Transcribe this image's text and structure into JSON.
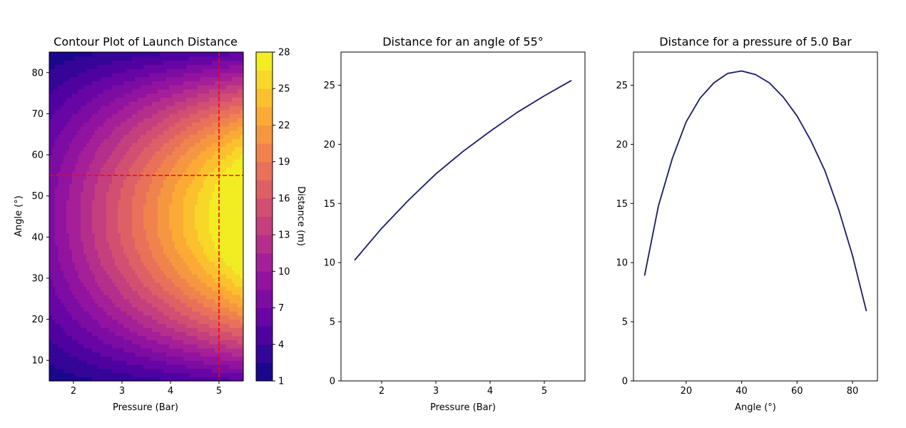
{
  "colors": {
    "line": "#191970",
    "crosshair": "#ff0000",
    "colormap": [
      "#0d0887",
      "#5c01a6",
      "#9c179e",
      "#cc4778",
      "#ed7953",
      "#fdb42f",
      "#f0f921"
    ]
  },
  "chart_data": [
    {
      "type": "heatmap",
      "title": "Contour Plot of Launch Distance",
      "xlabel": "Pressure (Bar)",
      "ylabel": "Angle (°)",
      "xlim": [
        1.5,
        5.5
      ],
      "ylim": [
        5,
        85
      ],
      "xticks": [
        2,
        3,
        4,
        5
      ],
      "yticks": [
        10,
        20,
        30,
        40,
        50,
        60,
        70,
        80
      ],
      "crosshair": {
        "x": 5,
        "y": 55
      },
      "colorbar": {
        "label": "Distance (m)",
        "range": [
          1,
          28
        ],
        "ticks": [
          1,
          4,
          7,
          10,
          13,
          16,
          19,
          22,
          25,
          28
        ],
        "levels": [
          1,
          2.5,
          4,
          5.5,
          7,
          8.5,
          10,
          11.5,
          13,
          14.5,
          16,
          17.5,
          19,
          20.5,
          22,
          23.5,
          25,
          26.5,
          28
        ]
      },
      "grid": false
    },
    {
      "type": "line",
      "title": "Distance for an angle of 55°",
      "xlabel": "Pressure (Bar)",
      "ylabel": "",
      "xlim": [
        1.25,
        5.75
      ],
      "ylim": [
        0,
        27.8
      ],
      "xticks": [
        2,
        3,
        4,
        5
      ],
      "yticks": [
        0,
        5,
        10,
        15,
        20,
        25
      ],
      "x": [
        1.5,
        2.0,
        2.5,
        3.0,
        3.5,
        4.0,
        4.5,
        5.0,
        5.5
      ],
      "y": [
        10.2,
        12.9,
        15.3,
        17.5,
        19.4,
        21.1,
        22.7,
        24.1,
        25.4
      ],
      "grid": false
    },
    {
      "type": "line",
      "title": "Distance for a pressure of 5.0 Bar",
      "xlabel": "Angle (°)",
      "ylabel": "",
      "xlim": [
        1,
        89
      ],
      "ylim": [
        0,
        27.8
      ],
      "xticks": [
        20,
        40,
        60,
        80
      ],
      "yticks": [
        0,
        5,
        10,
        15,
        20,
        25
      ],
      "x": [
        5,
        10,
        15,
        20,
        25,
        30,
        35,
        40,
        45,
        50,
        55,
        60,
        65,
        70,
        75,
        80,
        85
      ],
      "y": [
        8.9,
        14.8,
        18.8,
        21.9,
        23.9,
        25.2,
        26.0,
        26.2,
        25.9,
        25.2,
        24.0,
        22.4,
        20.3,
        17.8,
        14.5,
        10.6,
        5.9
      ],
      "grid": false
    }
  ]
}
